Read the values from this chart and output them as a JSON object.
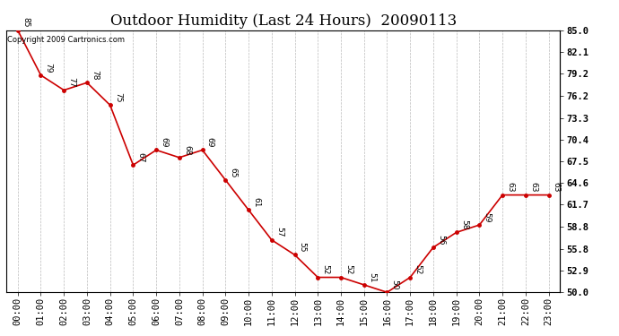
{
  "title": "Outdoor Humidity (Last 24 Hours)  20090113",
  "copyright": "Copyright 2009 Cartronics.com",
  "x_labels": [
    "00:00",
    "01:00",
    "02:00",
    "03:00",
    "04:00",
    "05:00",
    "06:00",
    "07:00",
    "08:00",
    "09:00",
    "10:00",
    "11:00",
    "12:00",
    "13:00",
    "14:00",
    "15:00",
    "16:00",
    "17:00",
    "18:00",
    "19:00",
    "20:00",
    "21:00",
    "22:00",
    "23:00"
  ],
  "y_values": [
    85,
    79,
    77,
    78,
    75,
    67,
    69,
    68,
    69,
    65,
    61,
    57,
    55,
    52,
    52,
    51,
    50,
    52,
    56,
    58,
    59,
    63,
    63,
    63
  ],
  "y_labels": [
    85.0,
    82.1,
    79.2,
    76.2,
    73.3,
    70.4,
    67.5,
    64.6,
    61.7,
    58.8,
    55.8,
    52.9,
    50.0
  ],
  "ylim": [
    50.0,
    85.0
  ],
  "line_color": "#cc0000",
  "marker_color": "#cc0000",
  "bg_color": "#ffffff",
  "grid_color": "#bbbbbb",
  "title_fontsize": 12,
  "label_fontsize": 7.5,
  "annotation_fontsize": 6.5,
  "copyright_fontsize": 6
}
